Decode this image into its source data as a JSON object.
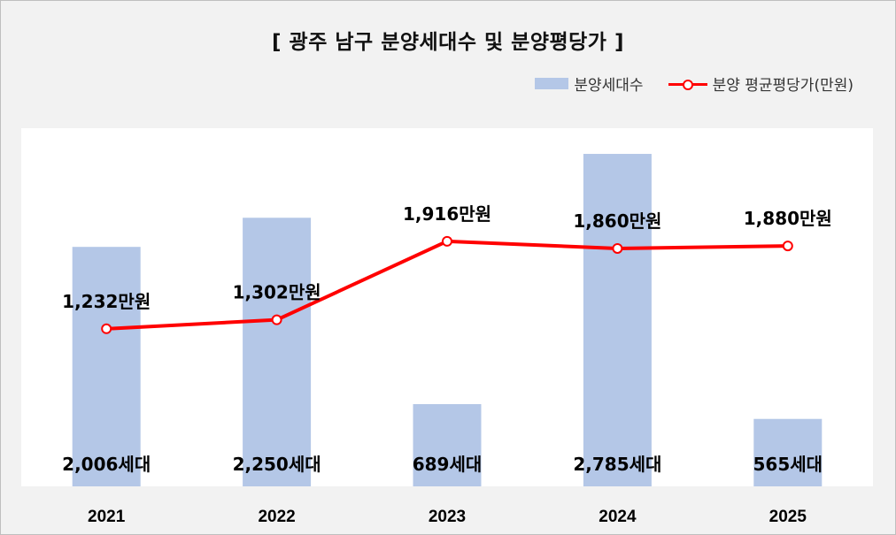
{
  "chart_data": {
    "type": "bar+line",
    "title": "[ 광주 남구 분양세대수 및 분양평당가 ]",
    "categories": [
      "2021",
      "2022",
      "2023",
      "2024",
      "2025"
    ],
    "series": [
      {
        "name": "분양세대수",
        "type": "bar",
        "values": [
          2006,
          2250,
          689,
          2785,
          565
        ],
        "labels": [
          "2,006세대",
          "2,250세대",
          "689세대",
          "2,785세대",
          "565세대"
        ],
        "color": "#b4c7e7",
        "ylim": [
          0,
          3000
        ]
      },
      {
        "name": "분양 평균평당가(만원)",
        "type": "line",
        "values": [
          1232,
          1302,
          1916,
          1860,
          1880
        ],
        "labels": [
          "1,232만원",
          "1,302만원",
          "1,916만원",
          "1,860만원",
          "1,880만원"
        ],
        "color": "#ff0000",
        "ylim": [
          0,
          2800
        ]
      }
    ],
    "legend_position": "top-right",
    "grid": false
  }
}
